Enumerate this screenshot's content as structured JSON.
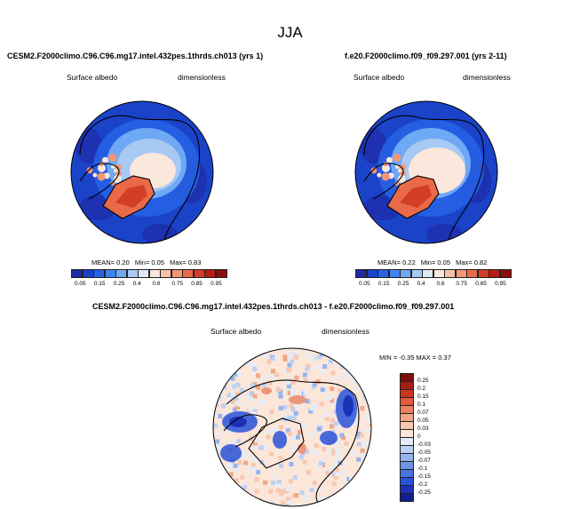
{
  "page": {
    "title": "JJA"
  },
  "palette_seq": [
    "#1f2aa6",
    "#1a43c8",
    "#2763e6",
    "#3f85f2",
    "#6fa8f4",
    "#a7c9f3",
    "#dfe9f6",
    "#fbe7dc",
    "#f7c2a8",
    "#f29674",
    "#e86a48",
    "#d23e27",
    "#b71c14",
    "#8b0e0c"
  ],
  "palette_div": [
    "#13208f",
    "#1c32b6",
    "#2a52d8",
    "#4a73e1",
    "#6e95e8",
    "#95b4ee",
    "#bdd0f2",
    "#e5ecf8",
    "#fbe6da",
    "#f7c7b0",
    "#f2a687",
    "#ec8261",
    "#e05c3d",
    "#c8381f",
    "#a81d12",
    "#7f0f0a"
  ],
  "chart_data": [
    {
      "type": "heatmap",
      "title": "CESM2.F2000climo.C96.C96.mg17.intel.432pes.1thrds.ch013 (yrs 1)",
      "variable": "Surface albedo",
      "units": "dimensionless",
      "mean_label": "MEAN=",
      "mean": "0.20",
      "min_label": "Min=",
      "min": "0.05",
      "max_label": "Max=",
      "max": "0.83",
      "levels": [
        "0.05",
        "0.15",
        "0.25",
        "0.4",
        "0.6",
        "0.75",
        "0.85",
        "0.95"
      ]
    },
    {
      "type": "heatmap",
      "title": "f.e20.F2000climo.f09_f09.297.001 (yrs 2-11)",
      "variable": "Surface albedo",
      "units": "dimensionless",
      "mean_label": "MEAN=",
      "mean": "0.22",
      "min_label": "Min=",
      "min": "0.05",
      "max_label": "Max=",
      "max": "0.82",
      "levels": [
        "0.05",
        "0.15",
        "0.25",
        "0.4",
        "0.6",
        "0.75",
        "0.85",
        "0.95"
      ]
    },
    {
      "type": "heatmap",
      "title": "CESM2.F2000climo.C96.C96.mg17.intel.432pes.1thrds.ch013 - f.e20.F2000climo.f09_f09.297.001",
      "variable": "Surface albedo",
      "units": "dimensionless",
      "range_text": "MIN = -0.35 MAX = 0.37",
      "levels": [
        "0.25",
        "0.2",
        "0.15",
        "0.1",
        "0.07",
        "0.05",
        "0.03",
        "0",
        "-0.03",
        "-0.05",
        "-0.07",
        "-0.1",
        "-0.15",
        "-0.2",
        "-0.25"
      ]
    }
  ]
}
